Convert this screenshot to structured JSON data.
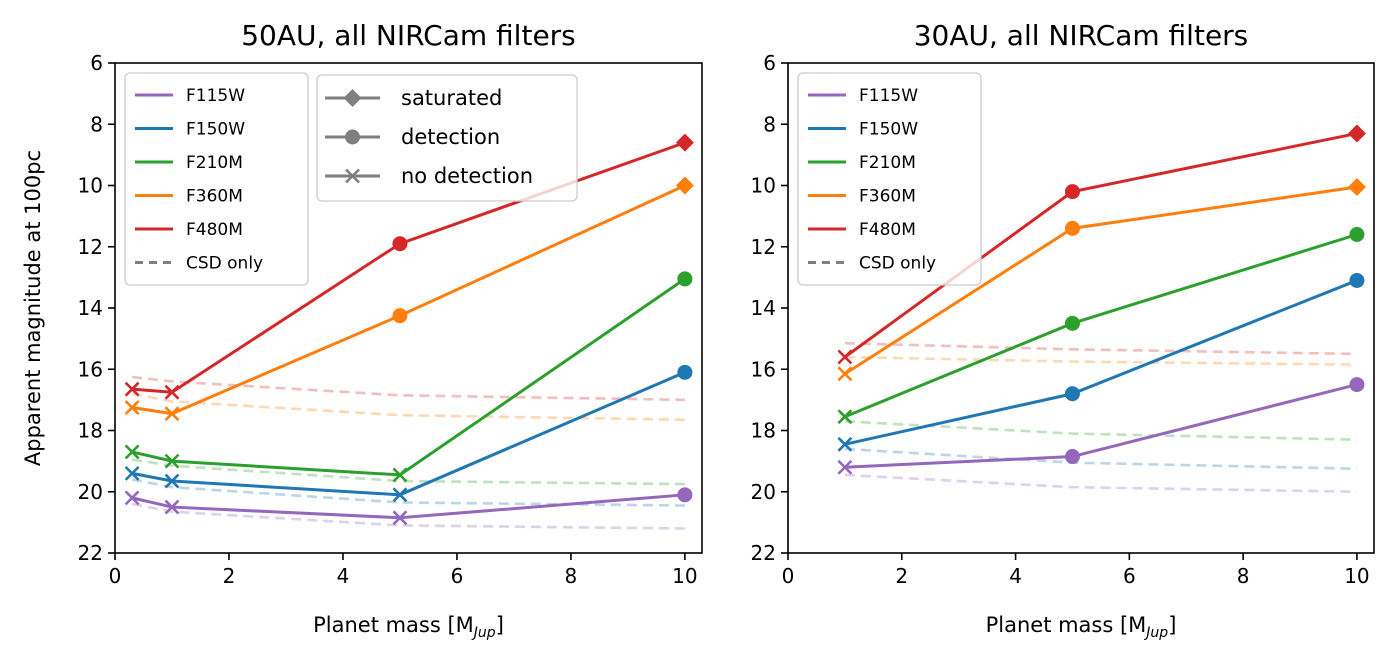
{
  "chart_data": [
    {
      "type": "line",
      "title": "50AU, all NIRCam filters",
      "xlabel": "Planet mass [M",
      "xlabel_sub": "Jup",
      "xlabel_end": "]",
      "ylabel": "Apparent magnitude at 100pc",
      "xlim": [
        0,
        10.3
      ],
      "ylim": [
        22,
        6
      ],
      "xticks": [
        "0",
        "2",
        "4",
        "6",
        "8",
        "10"
      ],
      "yticks": [
        "6",
        "8",
        "10",
        "12",
        "14",
        "16",
        "18",
        "20",
        "22"
      ],
      "x": [
        0.3,
        1,
        5,
        10
      ],
      "series": [
        {
          "name": "F115W",
          "color": "#9467bd",
          "values": [
            20.2,
            20.5,
            20.85,
            20.1
          ],
          "markers": [
            "x",
            "x",
            "x",
            "o"
          ],
          "csd": [
            20.4,
            20.65,
            21.1,
            21.2
          ]
        },
        {
          "name": "F150W",
          "color": "#1f77b4",
          "values": [
            19.4,
            19.65,
            20.1,
            16.1
          ],
          "markers": [
            "x",
            "x",
            "x",
            "o"
          ],
          "csd": [
            19.6,
            19.85,
            20.35,
            20.45
          ]
        },
        {
          "name": "F210M",
          "color": "#2ca02c",
          "values": [
            18.7,
            19.0,
            19.45,
            13.05
          ],
          "markers": [
            "x",
            "x",
            "x",
            "o"
          ],
          "csd": [
            18.95,
            19.15,
            19.65,
            19.75
          ]
        },
        {
          "name": "F360M",
          "color": "#ff7f0e",
          "values": [
            17.25,
            17.45,
            14.25,
            10.0
          ],
          "markers": [
            "x",
            "x",
            "o",
            "D"
          ],
          "csd": [
            16.8,
            17.05,
            17.5,
            17.65
          ]
        },
        {
          "name": "F480M",
          "color": "#d62728",
          "values": [
            16.65,
            16.75,
            11.9,
            8.6
          ],
          "markers": [
            "x",
            "x",
            "o",
            "D"
          ],
          "csd": [
            16.25,
            16.4,
            16.85,
            17.0
          ]
        }
      ]
    },
    {
      "type": "line",
      "title": "30AU, all NIRCam filters",
      "xlabel": "Planet mass [M",
      "xlabel_sub": "Jup",
      "xlabel_end": "]",
      "xlim": [
        0,
        10.3
      ],
      "ylim": [
        22,
        6
      ],
      "xticks": [
        "0",
        "2",
        "4",
        "6",
        "8",
        "10"
      ],
      "yticks": [
        "6",
        "8",
        "10",
        "12",
        "14",
        "16",
        "18",
        "20",
        "22"
      ],
      "x": [
        1,
        5,
        10
      ],
      "series": [
        {
          "name": "F115W",
          "color": "#9467bd",
          "values": [
            19.2,
            18.85,
            16.5
          ],
          "markers": [
            "x",
            "o",
            "o"
          ],
          "csd": [
            19.45,
            19.85,
            20.0
          ]
        },
        {
          "name": "F150W",
          "color": "#1f77b4",
          "values": [
            18.45,
            16.8,
            13.1
          ],
          "markers": [
            "x",
            "o",
            "o"
          ],
          "csd": [
            18.6,
            19.05,
            19.25
          ]
        },
        {
          "name": "F210M",
          "color": "#2ca02c",
          "values": [
            17.55,
            14.5,
            11.6
          ],
          "markers": [
            "x",
            "o",
            "o"
          ],
          "csd": [
            17.7,
            18.1,
            18.3
          ]
        },
        {
          "name": "F360M",
          "color": "#ff7f0e",
          "values": [
            16.15,
            11.4,
            10.05
          ],
          "markers": [
            "x",
            "o",
            "D"
          ],
          "csd": [
            15.6,
            15.75,
            15.85
          ]
        },
        {
          "name": "F480M",
          "color": "#d62728",
          "values": [
            15.6,
            10.2,
            8.3
          ],
          "markers": [
            "x",
            "o",
            "D"
          ],
          "csd": [
            15.15,
            15.35,
            15.5
          ]
        }
      ]
    }
  ],
  "legend_filters": [
    "F115W",
    "F150W",
    "F210M",
    "F360M",
    "F480M"
  ],
  "legend_csd": "CSD only",
  "legend_markers": [
    "saturated",
    "detection",
    "no detection"
  ],
  "colors": {
    "csd": "#7f7f7f",
    "axis": "#000000"
  }
}
